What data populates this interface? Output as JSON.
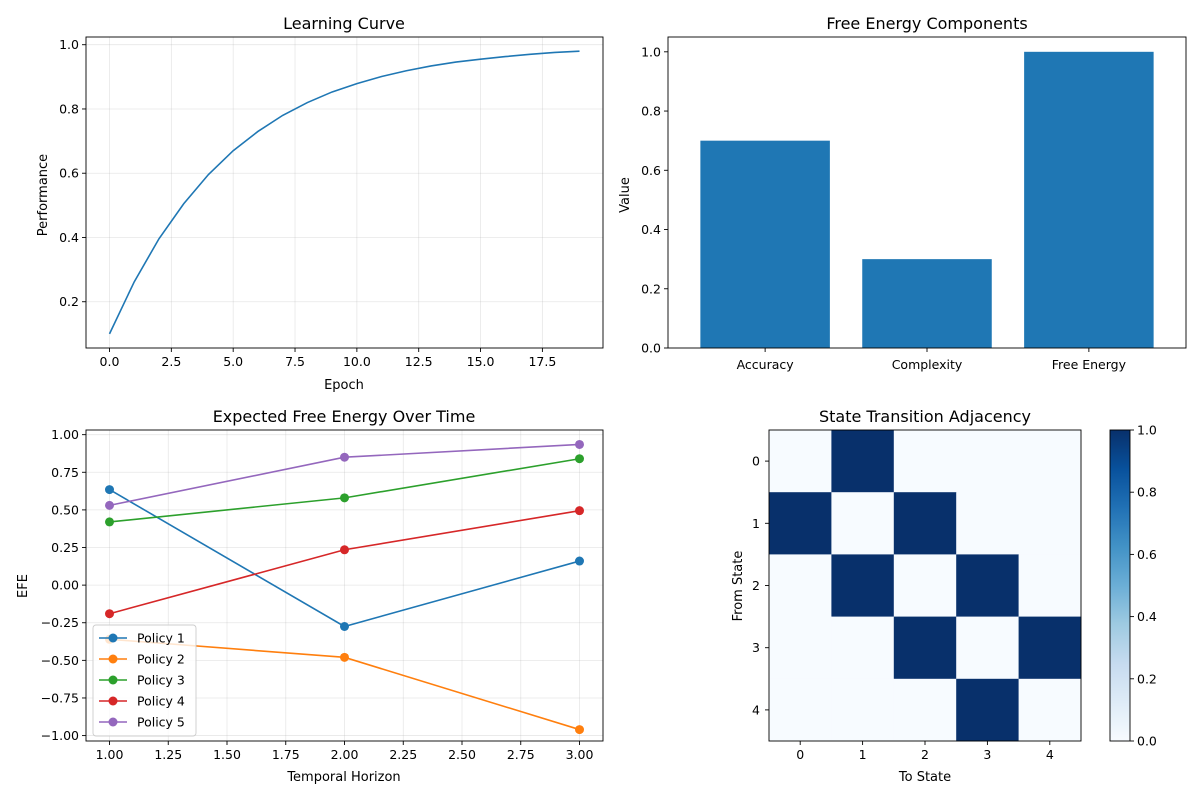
{
  "figure": {
    "background": "#ffffff"
  },
  "chart_data": [
    {
      "id": "learning",
      "type": "line",
      "title": "Learning Curve",
      "xlabel": "Epoch",
      "ylabel": "Performance",
      "xlim": [
        -0.95,
        19.95
      ],
      "ylim": [
        0.056,
        1.024
      ],
      "xticks": [
        0.0,
        2.5,
        5.0,
        7.5,
        10.0,
        12.5,
        15.0,
        17.5
      ],
      "xtick_labels": [
        "0.0",
        "2.5",
        "5.0",
        "7.5",
        "10.0",
        "12.5",
        "15.0",
        "17.5"
      ],
      "yticks": [
        0.2,
        0.4,
        0.6,
        0.8,
        1.0
      ],
      "ytick_labels": [
        "0.2",
        "0.4",
        "0.6",
        "0.8",
        "1.0"
      ],
      "grid": true,
      "color": "#1f77b4",
      "x": [
        0,
        1,
        2,
        3,
        4,
        5,
        6,
        7,
        8,
        9,
        10,
        11,
        12,
        13,
        14,
        15,
        16,
        17,
        18,
        19
      ],
      "y": [
        0.1,
        0.262,
        0.396,
        0.505,
        0.596,
        0.67,
        0.73,
        0.78,
        0.82,
        0.853,
        0.879,
        0.901,
        0.919,
        0.934,
        0.946,
        0.955,
        0.963,
        0.97,
        0.976,
        0.98
      ]
    },
    {
      "id": "components",
      "type": "bar",
      "title": "Free Energy Components",
      "xlabel": "",
      "ylabel": "Value",
      "ylim": [
        0,
        1.05
      ],
      "yticks": [
        0.0,
        0.2,
        0.4,
        0.6,
        0.8,
        1.0
      ],
      "ytick_labels": [
        "0.0",
        "0.2",
        "0.4",
        "0.6",
        "0.8",
        "1.0"
      ],
      "grid": false,
      "color": "#1f77b4",
      "categories": [
        "Accuracy",
        "Complexity",
        "Free Energy"
      ],
      "values": [
        0.7,
        0.3,
        1.0
      ]
    },
    {
      "id": "efe",
      "type": "line",
      "title": "Expected Free Energy Over Time",
      "xlabel": "Temporal Horizon",
      "ylabel": "EFE",
      "xlim": [
        0.9,
        3.1
      ],
      "ylim": [
        -1.036,
        1.031
      ],
      "xticks": [
        1.0,
        1.25,
        1.5,
        1.75,
        2.0,
        2.25,
        2.5,
        2.75,
        3.0
      ],
      "xtick_labels": [
        "1.00",
        "1.25",
        "1.50",
        "1.75",
        "2.00",
        "2.25",
        "2.50",
        "2.75",
        "3.00"
      ],
      "yticks": [
        -1.0,
        -0.75,
        -0.5,
        -0.25,
        0.0,
        0.25,
        0.5,
        0.75,
        1.0
      ],
      "ytick_labels": [
        "−1.00",
        "−0.75",
        "−0.50",
        "−0.25",
        "0.00",
        "0.25",
        "0.50",
        "0.75",
        "1.00"
      ],
      "grid": true,
      "legend": "lower-left",
      "x": [
        1,
        2,
        3
      ],
      "series": [
        {
          "name": "Policy 1",
          "color": "#1f77b4",
          "values": [
            0.635,
            -0.275,
            0.16
          ]
        },
        {
          "name": "Policy 2",
          "color": "#ff7f0e",
          "values": [
            -0.36,
            -0.48,
            -0.96
          ]
        },
        {
          "name": "Policy 3",
          "color": "#2ca02c",
          "values": [
            0.42,
            0.58,
            0.84
          ]
        },
        {
          "name": "Policy 4",
          "color": "#d62728",
          "values": [
            -0.19,
            0.235,
            0.495
          ]
        },
        {
          "name": "Policy 5",
          "color": "#9467bd",
          "values": [
            0.53,
            0.85,
            0.935
          ]
        }
      ]
    },
    {
      "id": "adjacency",
      "type": "heatmap",
      "title": "State Transition Adjacency",
      "xlabel": "To State",
      "ylabel": "From State",
      "xtick_labels": [
        "0",
        "1",
        "2",
        "3",
        "4"
      ],
      "ytick_labels": [
        "0",
        "1",
        "2",
        "3",
        "4"
      ],
      "colormap": "Blues",
      "color_low": "#f7fbff",
      "color_high": "#08306b",
      "vmin": 0.0,
      "vmax": 1.0,
      "colorbar_ticks": [
        0.0,
        0.2,
        0.4,
        0.6,
        0.8,
        1.0
      ],
      "colorbar_tick_labels": [
        "0.0",
        "0.2",
        "0.4",
        "0.6",
        "0.8",
        "1.0"
      ],
      "matrix": [
        [
          0,
          1,
          0,
          0,
          0
        ],
        [
          1,
          0,
          1,
          0,
          0
        ],
        [
          0,
          1,
          0,
          1,
          0
        ],
        [
          0,
          0,
          1,
          0,
          1
        ],
        [
          0,
          0,
          0,
          1,
          0
        ]
      ]
    }
  ]
}
